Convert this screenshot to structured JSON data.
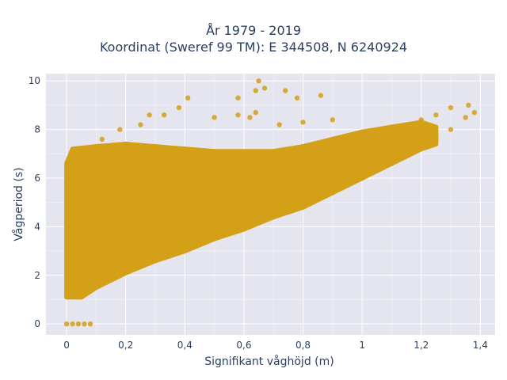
{
  "chart_data": {
    "type": "scatter",
    "title_lines": [
      "År 1979 - 2019",
      "Koordinat (Sweref 99 TM): E 344508, N 6240924"
    ],
    "xlabel": "Signifikant våghöjd (m)",
    "ylabel": "Vågperiod (s)",
    "xlim": [
      -0.07,
      1.45
    ],
    "ylim": [
      -0.45,
      10.3
    ],
    "x_ticks": [
      0,
      0.2,
      0.4,
      0.6,
      0.8,
      1,
      1.2,
      1.4
    ],
    "x_tick_labels": [
      "0",
      "0,2",
      "0,4",
      "0,6",
      "0,8",
      "1",
      "1,2",
      "1,4"
    ],
    "y_ticks": [
      0,
      2,
      4,
      6,
      8,
      10
    ],
    "y_tick_labels": [
      "0",
      "2",
      "4",
      "6",
      "8",
      "10"
    ],
    "grid": true,
    "marker_color": "#D4A017",
    "plot_background": "#E5E5F0",
    "series": [
      {
        "values": [
          {
            "x": 0.0,
            "y": 0.0
          },
          {
            "x": 0.02,
            "y": 0.0
          },
          {
            "x": 0.04,
            "y": 0.0
          },
          {
            "x": 0.06,
            "y": 0.0
          },
          {
            "x": 0.08,
            "y": 0.0
          },
          {
            "x": 0.0,
            "y": 1.2
          },
          {
            "x": 0.0,
            "y": 2.0
          },
          {
            "x": 0.01,
            "y": 3.0
          },
          {
            "x": 0.02,
            "y": 4.0
          },
          {
            "x": 0.03,
            "y": 5.0
          },
          {
            "x": 0.04,
            "y": 6.0
          },
          {
            "x": 0.05,
            "y": 7.0
          },
          {
            "x": 0.05,
            "y": 1.1
          },
          {
            "x": 0.1,
            "y": 1.5
          },
          {
            "x": 0.15,
            "y": 1.8
          },
          {
            "x": 0.2,
            "y": 2.1
          },
          {
            "x": 0.3,
            "y": 2.6
          },
          {
            "x": 0.4,
            "y": 3.0
          },
          {
            "x": 0.5,
            "y": 3.5
          },
          {
            "x": 0.6,
            "y": 3.9
          },
          {
            "x": 0.7,
            "y": 4.4
          },
          {
            "x": 0.8,
            "y": 4.8
          },
          {
            "x": 0.9,
            "y": 5.4
          },
          {
            "x": 1.0,
            "y": 6.0
          },
          {
            "x": 1.1,
            "y": 6.6
          },
          {
            "x": 1.2,
            "y": 7.3
          },
          {
            "x": 1.3,
            "y": 8.0
          },
          {
            "x": 1.35,
            "y": 8.5
          },
          {
            "x": 1.38,
            "y": 8.7
          },
          {
            "x": 1.36,
            "y": 9.0
          },
          {
            "x": 0.1,
            "y": 7.3
          },
          {
            "x": 0.2,
            "y": 7.4
          },
          {
            "x": 0.3,
            "y": 7.3
          },
          {
            "x": 0.4,
            "y": 7.2
          },
          {
            "x": 0.5,
            "y": 7.1
          },
          {
            "x": 0.6,
            "y": 7.0
          },
          {
            "x": 0.7,
            "y": 7.1
          },
          {
            "x": 0.8,
            "y": 7.3
          },
          {
            "x": 0.9,
            "y": 7.6
          },
          {
            "x": 1.0,
            "y": 7.9
          },
          {
            "x": 1.1,
            "y": 8.1
          },
          {
            "x": 1.2,
            "y": 8.4
          },
          {
            "x": 1.25,
            "y": 8.6
          },
          {
            "x": 1.3,
            "y": 8.9
          },
          {
            "x": 0.12,
            "y": 7.6
          },
          {
            "x": 0.18,
            "y": 8.0
          },
          {
            "x": 0.25,
            "y": 8.2
          },
          {
            "x": 0.28,
            "y": 8.6
          },
          {
            "x": 0.33,
            "y": 8.6
          },
          {
            "x": 0.38,
            "y": 8.9
          },
          {
            "x": 0.41,
            "y": 9.3
          },
          {
            "x": 0.5,
            "y": 8.5
          },
          {
            "x": 0.58,
            "y": 8.6
          },
          {
            "x": 0.62,
            "y": 8.5
          },
          {
            "x": 0.64,
            "y": 8.7
          },
          {
            "x": 0.58,
            "y": 9.3
          },
          {
            "x": 0.64,
            "y": 9.6
          },
          {
            "x": 0.65,
            "y": 10.0
          },
          {
            "x": 0.67,
            "y": 9.7
          },
          {
            "x": 0.74,
            "y": 9.6
          },
          {
            "x": 0.78,
            "y": 9.3
          },
          {
            "x": 0.86,
            "y": 9.4
          },
          {
            "x": 0.72,
            "y": 8.2
          },
          {
            "x": 0.8,
            "y": 8.3
          },
          {
            "x": 0.9,
            "y": 8.4
          },
          {
            "x": 1.2,
            "y": 8.0
          },
          {
            "x": 1.25,
            "y": 7.6
          }
        ]
      }
    ]
  }
}
